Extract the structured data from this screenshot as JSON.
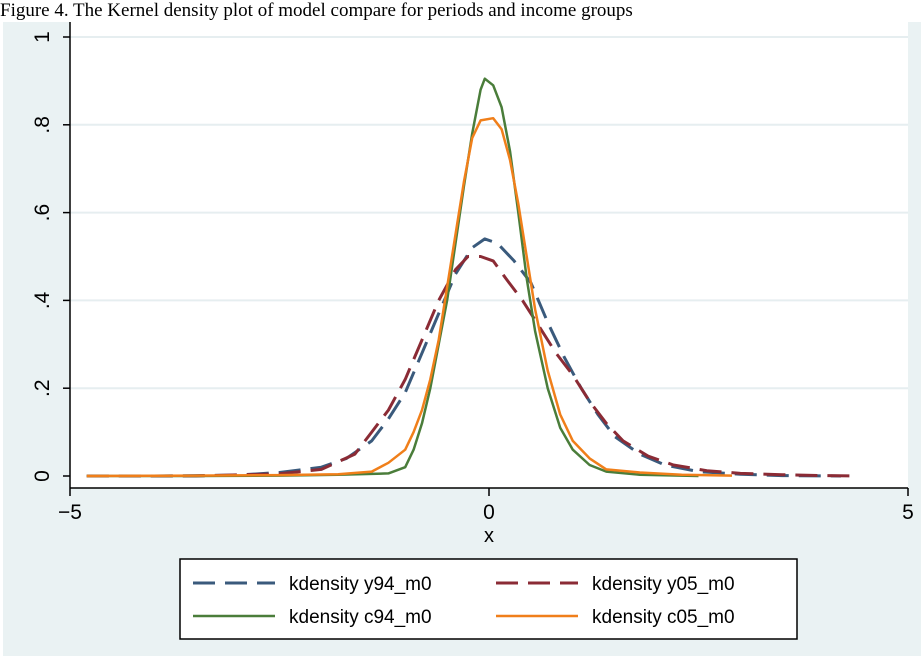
{
  "caption": "Figure 4. The Kernel density plot of model compare for periods and income groups",
  "chart_data": {
    "type": "line",
    "title": "",
    "xlabel": "x",
    "ylabel": "",
    "xlim": [
      -5,
      5
    ],
    "ylim": [
      0,
      1
    ],
    "xticks": [
      -5,
      0,
      5
    ],
    "xtick_labels": [
      "−5",
      "0",
      "5"
    ],
    "yticks": [
      0,
      0.2,
      0.4,
      0.6,
      0.8,
      1
    ],
    "ytick_labels": [
      "0",
      ".2",
      ".4",
      ".6",
      ".8",
      "1"
    ],
    "grid": "horizontal",
    "legend_position": "bottom",
    "series": [
      {
        "name": "kdensity y94_m0",
        "color": "#3a5a7c",
        "dash": "long-dash",
        "points": [
          [
            -4.8,
            0.0
          ],
          [
            -4.0,
            0.0
          ],
          [
            -3.0,
            0.002
          ],
          [
            -2.5,
            0.008
          ],
          [
            -2.0,
            0.02
          ],
          [
            -1.7,
            0.04
          ],
          [
            -1.4,
            0.08
          ],
          [
            -1.2,
            0.13
          ],
          [
            -1.0,
            0.19
          ],
          [
            -0.8,
            0.28
          ],
          [
            -0.6,
            0.37
          ],
          [
            -0.4,
            0.46
          ],
          [
            -0.2,
            0.52
          ],
          [
            -0.05,
            0.54
          ],
          [
            0.1,
            0.53
          ],
          [
            0.3,
            0.49
          ],
          [
            0.5,
            0.44
          ],
          [
            0.7,
            0.35
          ],
          [
            0.9,
            0.27
          ],
          [
            1.1,
            0.2
          ],
          [
            1.3,
            0.14
          ],
          [
            1.5,
            0.09
          ],
          [
            1.8,
            0.05
          ],
          [
            2.1,
            0.025
          ],
          [
            2.5,
            0.01
          ],
          [
            3.0,
            0.004
          ],
          [
            3.5,
            0.001
          ],
          [
            4.2,
            0.0
          ]
        ]
      },
      {
        "name": "kdensity y05_m0",
        "color": "#8b2b35",
        "dash": "long-dash",
        "points": [
          [
            -4.8,
            0.0
          ],
          [
            -3.5,
            0.0
          ],
          [
            -2.5,
            0.005
          ],
          [
            -2.0,
            0.015
          ],
          [
            -1.6,
            0.05
          ],
          [
            -1.4,
            0.1
          ],
          [
            -1.2,
            0.15
          ],
          [
            -1.0,
            0.22
          ],
          [
            -0.8,
            0.31
          ],
          [
            -0.6,
            0.4
          ],
          [
            -0.4,
            0.47
          ],
          [
            -0.25,
            0.5
          ],
          [
            -0.1,
            0.5
          ],
          [
            0.05,
            0.49
          ],
          [
            0.2,
            0.45
          ],
          [
            0.4,
            0.4
          ],
          [
            0.6,
            0.34
          ],
          [
            0.8,
            0.28
          ],
          [
            1.0,
            0.23
          ],
          [
            1.2,
            0.17
          ],
          [
            1.4,
            0.12
          ],
          [
            1.6,
            0.08
          ],
          [
            1.9,
            0.045
          ],
          [
            2.2,
            0.025
          ],
          [
            2.6,
            0.012
          ],
          [
            3.0,
            0.006
          ],
          [
            3.5,
            0.003
          ],
          [
            4.0,
            0.001
          ],
          [
            4.4,
            0.0
          ]
        ]
      },
      {
        "name": "kdensity c94_m0",
        "color": "#4a7d3a",
        "dash": "solid",
        "points": [
          [
            -4.8,
            0.0
          ],
          [
            -3.5,
            0.0
          ],
          [
            -2.5,
            0.001
          ],
          [
            -1.8,
            0.003
          ],
          [
            -1.2,
            0.006
          ],
          [
            -1.0,
            0.02
          ],
          [
            -0.9,
            0.06
          ],
          [
            -0.8,
            0.12
          ],
          [
            -0.7,
            0.2
          ],
          [
            -0.6,
            0.3
          ],
          [
            -0.5,
            0.4
          ],
          [
            -0.4,
            0.53
          ],
          [
            -0.3,
            0.66
          ],
          [
            -0.2,
            0.78
          ],
          [
            -0.1,
            0.88
          ],
          [
            -0.05,
            0.905
          ],
          [
            0.05,
            0.89
          ],
          [
            0.15,
            0.84
          ],
          [
            0.25,
            0.74
          ],
          [
            0.35,
            0.6
          ],
          [
            0.45,
            0.45
          ],
          [
            0.55,
            0.33
          ],
          [
            0.7,
            0.2
          ],
          [
            0.85,
            0.11
          ],
          [
            1.0,
            0.06
          ],
          [
            1.2,
            0.025
          ],
          [
            1.4,
            0.01
          ],
          [
            1.8,
            0.003
          ],
          [
            2.5,
            0.0
          ]
        ]
      },
      {
        "name": "kdensity c05_m0",
        "color": "#f07f1a",
        "dash": "solid",
        "points": [
          [
            -4.8,
            0.0
          ],
          [
            -3.5,
            0.001
          ],
          [
            -2.5,
            0.002
          ],
          [
            -1.8,
            0.004
          ],
          [
            -1.4,
            0.01
          ],
          [
            -1.2,
            0.03
          ],
          [
            -1.0,
            0.06
          ],
          [
            -0.9,
            0.1
          ],
          [
            -0.8,
            0.15
          ],
          [
            -0.7,
            0.22
          ],
          [
            -0.6,
            0.31
          ],
          [
            -0.5,
            0.43
          ],
          [
            -0.4,
            0.55
          ],
          [
            -0.3,
            0.67
          ],
          [
            -0.2,
            0.77
          ],
          [
            -0.1,
            0.81
          ],
          [
            0.05,
            0.815
          ],
          [
            0.15,
            0.79
          ],
          [
            0.25,
            0.72
          ],
          [
            0.35,
            0.62
          ],
          [
            0.45,
            0.5
          ],
          [
            0.55,
            0.38
          ],
          [
            0.7,
            0.24
          ],
          [
            0.85,
            0.14
          ],
          [
            1.0,
            0.08
          ],
          [
            1.2,
            0.04
          ],
          [
            1.4,
            0.015
          ],
          [
            1.8,
            0.008
          ],
          [
            2.3,
            0.003
          ],
          [
            2.9,
            0.001
          ]
        ]
      }
    ]
  }
}
